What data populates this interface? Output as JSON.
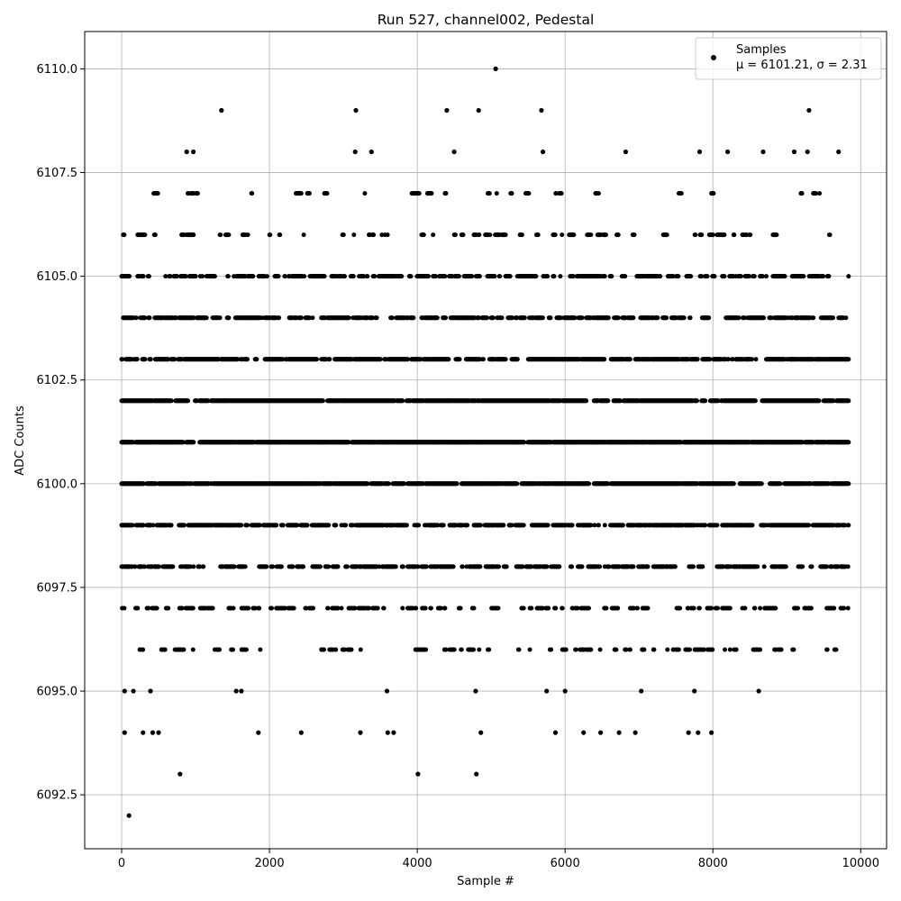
{
  "chart_data": {
    "type": "scatter",
    "title": "Run 527, channel002, Pedestal",
    "xlabel": "Sample #",
    "ylabel": "ADC Counts",
    "xlim": [
      -500,
      10350
    ],
    "ylim": [
      6091.2,
      6110.9
    ],
    "x_ticks": [
      0,
      2000,
      4000,
      6000,
      8000,
      10000
    ],
    "x_tick_labels": [
      "0",
      "2000",
      "4000",
      "6000",
      "8000",
      "10000"
    ],
    "y_ticks": [
      6092.5,
      6095.0,
      6097.5,
      6100.0,
      6102.5,
      6105.0,
      6107.5,
      6110.0
    ],
    "y_tick_labels": [
      "6092.5",
      "6095.0",
      "6097.5",
      "6100.0",
      "6102.5",
      "6105.0",
      "6107.5",
      "6110.0"
    ],
    "grid": true,
    "legend": {
      "position": "top-right",
      "series_label": "Samples",
      "stats_label": "μ = 6101.21, σ = 2.31"
    },
    "marker_color": "#000000",
    "x_samples": [
      0,
      9840
    ],
    "level_density": {
      "6101": 0.95,
      "6102": 0.93,
      "6100": 0.86,
      "6103": 0.78,
      "6099": 0.66,
      "6104": 0.56,
      "6098": 0.52,
      "6105": 0.46,
      "6097": 0.34,
      "6106": 0.22,
      "6096": 0.15,
      "6107": 0.07,
      "6095": 0.005,
      "6094": 0.004,
      "6108": 0.005,
      "6109": 0.0015,
      "6093": 0.0005,
      "6092": 0.0002,
      "6110": 0.0001
    },
    "outlier_points": [
      {
        "x": 100,
        "y": 6092
      },
      {
        "x": 790,
        "y": 6093
      },
      {
        "x": 4010,
        "y": 6093
      },
      {
        "x": 4800,
        "y": 6093
      },
      {
        "x": 1350,
        "y": 6109
      },
      {
        "x": 3170,
        "y": 6109
      },
      {
        "x": 4400,
        "y": 6109
      },
      {
        "x": 4830,
        "y": 6109
      },
      {
        "x": 5680,
        "y": 6109
      },
      {
        "x": 9300,
        "y": 6109
      },
      {
        "x": 5060,
        "y": 6110
      },
      {
        "x": 880,
        "y": 6108
      },
      {
        "x": 970,
        "y": 6108
      },
      {
        "x": 3160,
        "y": 6108
      },
      {
        "x": 3380,
        "y": 6108
      },
      {
        "x": 4500,
        "y": 6108
      },
      {
        "x": 5700,
        "y": 6108
      },
      {
        "x": 6820,
        "y": 6108
      },
      {
        "x": 7820,
        "y": 6108
      },
      {
        "x": 8200,
        "y": 6108
      },
      {
        "x": 8680,
        "y": 6108
      },
      {
        "x": 9100,
        "y": 6108
      },
      {
        "x": 9280,
        "y": 6108
      },
      {
        "x": 9700,
        "y": 6108
      },
      {
        "x": 40,
        "y": 6095
      },
      {
        "x": 160,
        "y": 6095
      },
      {
        "x": 390,
        "y": 6095
      },
      {
        "x": 1550,
        "y": 6095
      },
      {
        "x": 1620,
        "y": 6095
      },
      {
        "x": 3590,
        "y": 6095
      },
      {
        "x": 4790,
        "y": 6095
      },
      {
        "x": 5750,
        "y": 6095
      },
      {
        "x": 6000,
        "y": 6095
      },
      {
        "x": 7030,
        "y": 6095
      },
      {
        "x": 7750,
        "y": 6095
      },
      {
        "x": 8620,
        "y": 6095
      },
      {
        "x": 40,
        "y": 6094
      },
      {
        "x": 290,
        "y": 6094
      },
      {
        "x": 420,
        "y": 6094
      },
      {
        "x": 500,
        "y": 6094
      },
      {
        "x": 1850,
        "y": 6094
      },
      {
        "x": 2430,
        "y": 6094
      },
      {
        "x": 3230,
        "y": 6094
      },
      {
        "x": 3600,
        "y": 6094
      },
      {
        "x": 3680,
        "y": 6094
      },
      {
        "x": 4860,
        "y": 6094
      },
      {
        "x": 5870,
        "y": 6094
      },
      {
        "x": 6250,
        "y": 6094
      },
      {
        "x": 6480,
        "y": 6094
      },
      {
        "x": 6730,
        "y": 6094
      },
      {
        "x": 6950,
        "y": 6094
      },
      {
        "x": 7670,
        "y": 6094
      },
      {
        "x": 7800,
        "y": 6094
      },
      {
        "x": 7980,
        "y": 6094
      }
    ]
  }
}
